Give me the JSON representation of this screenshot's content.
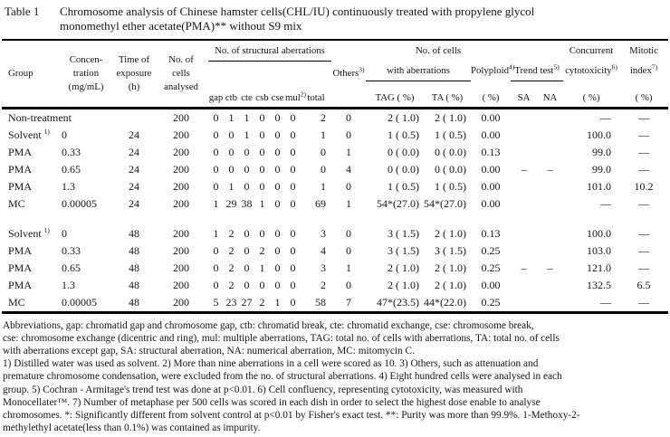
{
  "title": {
    "label": "Table 1",
    "line1": "Chromosome analysis of Chinese hamster cells(CHL/IU) continuously treated with propylene glycol",
    "line2": "monomethyl ether acetate(PMA)** without S9 mix"
  },
  "header": {
    "group": "Group",
    "conc1": "Concen-",
    "conc2": "tration",
    "conc3": "(mg/mL)",
    "time1": "Time of",
    "time2": "exposure",
    "time3": "(h)",
    "cells1": "No. of",
    "cells2": "cells",
    "cells3": "analysed",
    "structural": "No. of structural aberrations",
    "gap": "gap",
    "ctb": "ctb",
    "cte": "cte",
    "csb": "csb",
    "cse": "cse",
    "mul": "mul",
    "mul_sup": "2)",
    "total": "total",
    "others": "Others",
    "others_sup": "3)",
    "no_of_cells": "No. of cells",
    "with_aberrations": "with aberrations",
    "tag": "TAG ( %)",
    "ta": "TA ( %)",
    "polyploid": "Polyploid",
    "polyploid_sup": "4)",
    "polyploid_pct": "( %)",
    "trend": "Trend test",
    "trend_sup": "5)",
    "sa": "SA",
    "na": "NA",
    "concurrent1": "Concurrent",
    "concurrent2": "cytotoxicity",
    "concurrent2_sup": "6)",
    "concurrent3": "( %)",
    "mitotic1": "Mitotic",
    "mitotic2": "index",
    "mitotic2_sup": "7)",
    "mitotic3": "( %)"
  },
  "rows": [
    {
      "group": "Non-treatment",
      "group_sup": "",
      "conc": "",
      "time": "",
      "cells": "200",
      "gap": "0",
      "ctb": "1",
      "cte": "1",
      "csb": "0",
      "cse": "0",
      "mul": "0",
      "total": "2",
      "others": "0",
      "tag": "2 ( 1.0)",
      "ta": "2 ( 1.0)",
      "polyploid": "0.00",
      "sa": "",
      "na": "",
      "cyto": "—",
      "mitotic": "—"
    },
    {
      "group": "Solvent",
      "group_sup": "1)",
      "conc": "0",
      "time": "24",
      "cells": "200",
      "gap": "0",
      "ctb": "0",
      "cte": "1",
      "csb": "0",
      "cse": "0",
      "mul": "0",
      "total": "1",
      "others": "0",
      "tag": "1 ( 0.5)",
      "ta": "1 ( 0.5)",
      "polyploid": "0.00",
      "sa": "",
      "na": "",
      "cyto": "100.0",
      "mitotic": "—"
    },
    {
      "group": "PMA",
      "group_sup": "",
      "conc": "0.33",
      "time": "24",
      "cells": "200",
      "gap": "0",
      "ctb": "0",
      "cte": "0",
      "csb": "0",
      "cse": "0",
      "mul": "0",
      "total": "0",
      "others": "1",
      "tag": "0 ( 0.0)",
      "ta": "0 ( 0.0)",
      "polyploid": "0.13",
      "sa": "",
      "na": "",
      "cyto": "99.0",
      "mitotic": "—"
    },
    {
      "group": "PMA",
      "group_sup": "",
      "conc": "0.65",
      "time": "24",
      "cells": "200",
      "gap": "0",
      "ctb": "0",
      "cte": "0",
      "csb": "0",
      "cse": "0",
      "mul": "0",
      "total": "0",
      "others": "4",
      "tag": "0 ( 0.0)",
      "ta": "0 ( 0.0)",
      "polyploid": "0.00",
      "sa": "–",
      "na": "–",
      "cyto": "99.0",
      "mitotic": "—"
    },
    {
      "group": "PMA",
      "group_sup": "",
      "conc": "1.3",
      "time": "24",
      "cells": "200",
      "gap": "0",
      "ctb": "1",
      "cte": "0",
      "csb": "0",
      "cse": "0",
      "mul": "0",
      "total": "1",
      "others": "0",
      "tag": "1 ( 0.5)",
      "ta": "1 ( 0.5)",
      "polyploid": "0.00",
      "sa": "",
      "na": "",
      "cyto": "101.0",
      "mitotic": "10.2"
    },
    {
      "group": "MC",
      "group_sup": "",
      "conc": "0.00005",
      "time": "24",
      "cells": "200",
      "gap": "1",
      "ctb": "29",
      "cte": "38",
      "csb": "1",
      "cse": "0",
      "mul": "0",
      "total": "69",
      "others": "1",
      "tag": "54*(27.0)",
      "ta": "54*(27.0)",
      "polyploid": "0.00",
      "sa": "",
      "na": "",
      "cyto": "—",
      "mitotic": "—"
    },
    {
      "spacer": true
    },
    {
      "group": "Solvent",
      "group_sup": "1)",
      "conc": "0",
      "time": "48",
      "cells": "200",
      "gap": "1",
      "ctb": "2",
      "cte": "0",
      "csb": "0",
      "cse": "0",
      "mul": "0",
      "total": "3",
      "others": "0",
      "tag": "3 ( 1.5)",
      "ta": "2 ( 1.0)",
      "polyploid": "0.13",
      "sa": "",
      "na": "",
      "cyto": "100.0",
      "mitotic": "—"
    },
    {
      "group": "PMA",
      "group_sup": "",
      "conc": "0.33",
      "time": "48",
      "cells": "200",
      "gap": "0",
      "ctb": "2",
      "cte": "0",
      "csb": "2",
      "cse": "0",
      "mul": "0",
      "total": "4",
      "others": "0",
      "tag": "3 ( 1.5)",
      "ta": "3 ( 1.5)",
      "polyploid": "0.25",
      "sa": "",
      "na": "",
      "cyto": "103.0",
      "mitotic": "—"
    },
    {
      "group": "PMA",
      "group_sup": "",
      "conc": "0.65",
      "time": "48",
      "cells": "200",
      "gap": "0",
      "ctb": "2",
      "cte": "0",
      "csb": "1",
      "cse": "0",
      "mul": "0",
      "total": "3",
      "others": "1",
      "tag": "2 ( 1.0)",
      "ta": "2 ( 1.0)",
      "polyploid": "0.25",
      "sa": "–",
      "na": "–",
      "cyto": "121.0",
      "mitotic": "—"
    },
    {
      "group": "PMA",
      "group_sup": "",
      "conc": "1.3",
      "time": "48",
      "cells": "200",
      "gap": "0",
      "ctb": "2",
      "cte": "0",
      "csb": "0",
      "cse": "0",
      "mul": "0",
      "total": "2",
      "others": "0",
      "tag": "2 ( 1.0)",
      "ta": "2 ( 1.0)",
      "polyploid": "0.00",
      "sa": "",
      "na": "",
      "cyto": "132.5",
      "mitotic": "6.5"
    },
    {
      "group": "MC",
      "group_sup": "",
      "conc": "0.00005",
      "time": "48",
      "cells": "200",
      "gap": "5",
      "ctb": "23",
      "cte": "27",
      "csb": "2",
      "cse": "1",
      "mul": "0",
      "total": "58",
      "others": "7",
      "tag": "47*(23.5)",
      "ta": "44*(22.0)",
      "polyploid": "0.25",
      "sa": "",
      "na": "",
      "cyto": "—",
      "mitotic": "—"
    }
  ],
  "footnotes": [
    "Abbreviations,  gap: chromatid gap and chromosome gap,  ctb: chromatid break,  cte: chromatid exchange,  cse: chromosome break,",
    "cse: chromosome exchange (dicentric and ring),  mul: multiple aberrations,  TAG: total no. of cells with aberrations, TA: total no. of cells",
    "with aberrations except gap, SA: structural aberration, NA: numerical aberration,  MC: mitomycin C.",
    "1) Distilled water was used as solvent.   2) More than nine aberrations in a cell were scored as 10.   3) Others,  such as attenuation and",
    "premature chromosome condensation, were excluded from the no. of structural aberrations.    4) Eight hundred cells were analysed in each",
    "group.   5) Cochran - Armitage's trend test was done at p<0.01.   6) Cell confluency, representing cytotoxicity, was measured with",
    "Monocellater™.   7) Number of metaphase per 500 cells was scored in each dish in order to select the highest dose enable to analyse",
    "chromosomes.  *: Significantly different from solvent control at p<0.01 by Fisher's exact test.  **: Purity was more than 99.9%. 1-Methoxy-2-",
    "methylethyl acetate(less than 0.1%) was contained as impurity."
  ]
}
